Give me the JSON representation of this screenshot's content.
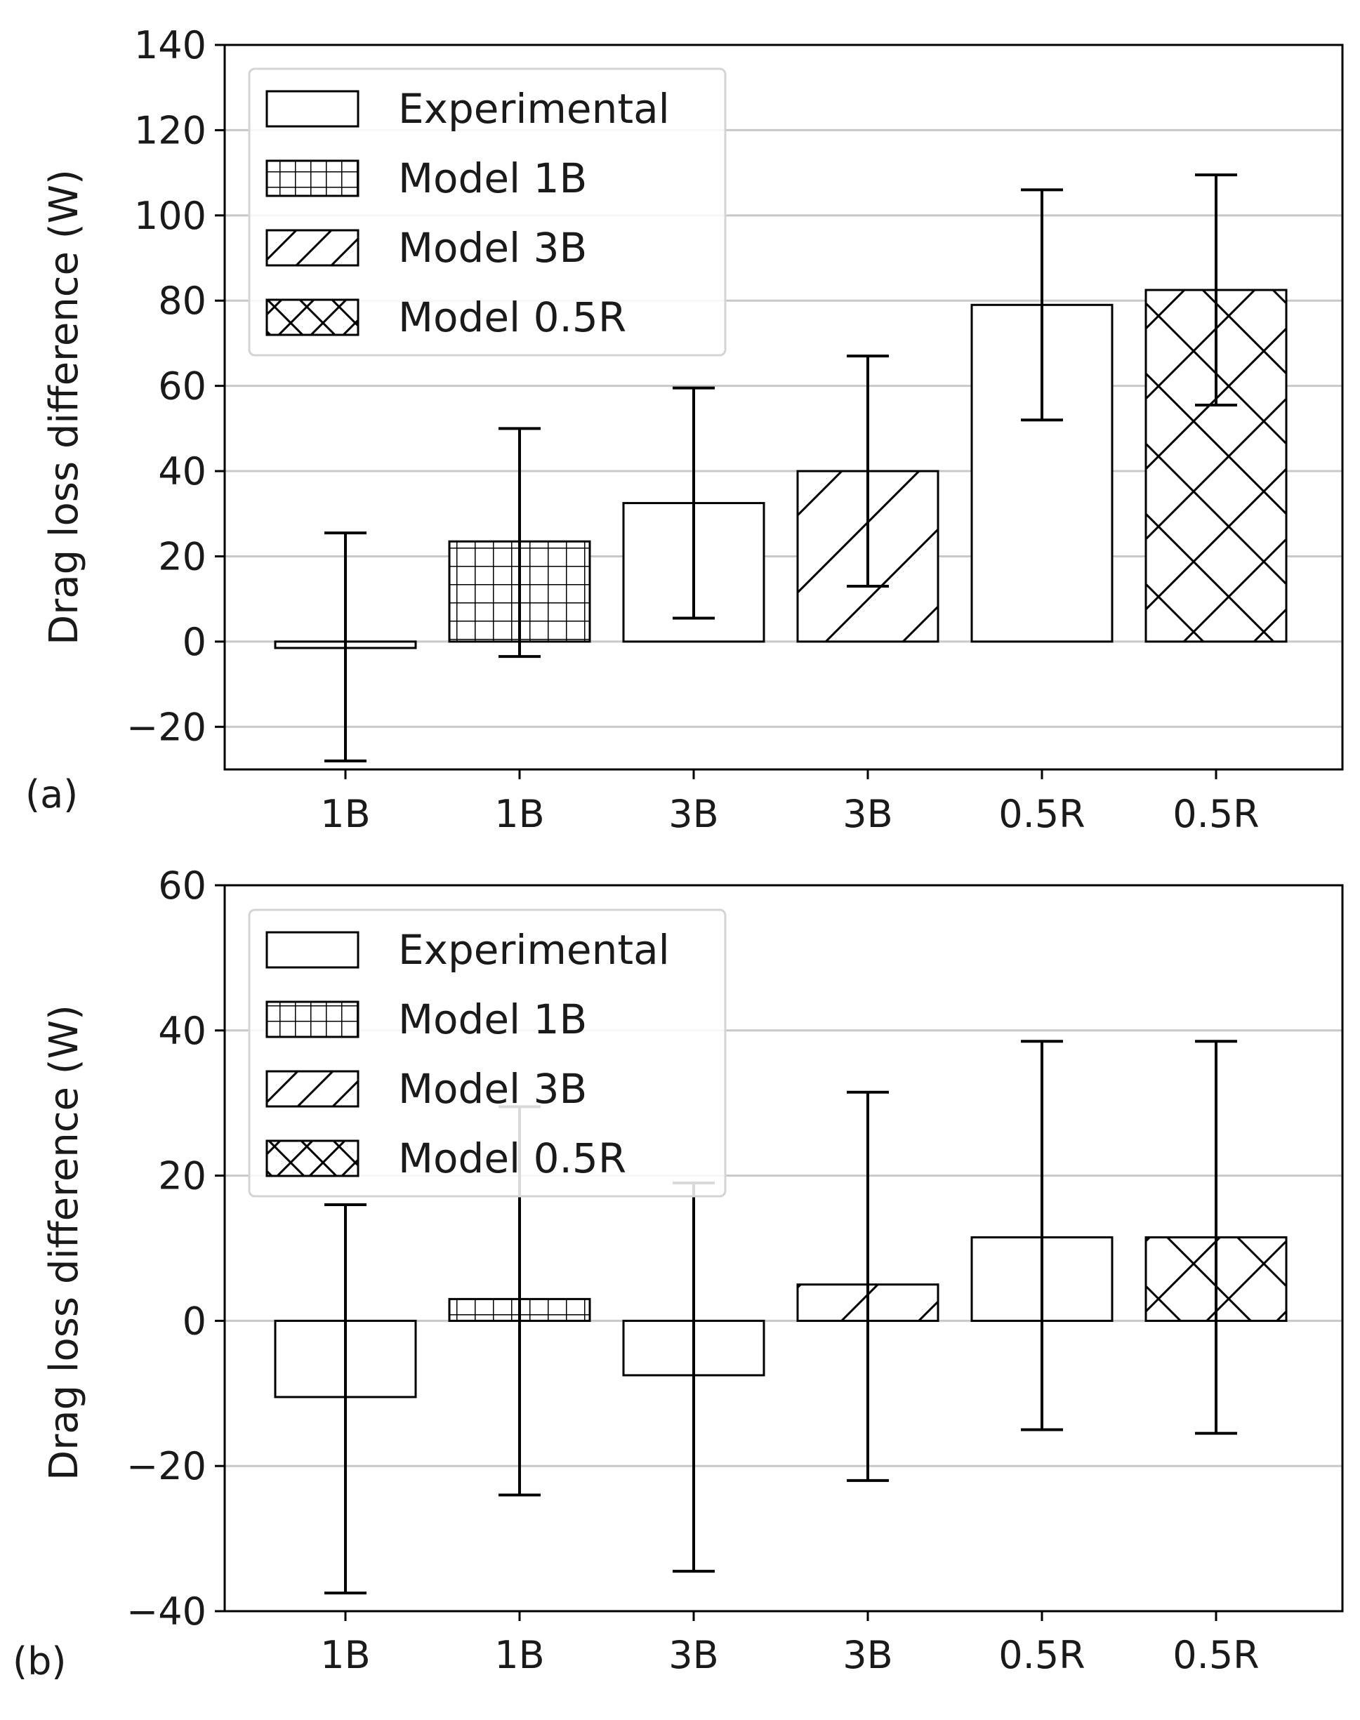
{
  "chart_data": [
    {
      "panel": "a",
      "type": "bar",
      "panel_label": "(a)",
      "ylabel": "Drag loss difference (W)",
      "xlabel": "",
      "ylim": [
        -30,
        140
      ],
      "yticks": [
        -20,
        0,
        20,
        40,
        60,
        80,
        100,
        120,
        140
      ],
      "ytick_labels": [
        "−20",
        "0",
        "20",
        "40",
        "60",
        "80",
        "100",
        "120",
        "140"
      ],
      "grid": "horizontal",
      "legend_position": "top-left",
      "categories": [
        "1B",
        "1B",
        "3B",
        "3B",
        "0.5R",
        "0.5R"
      ],
      "bars": [
        {
          "category": "1B",
          "series": "Experimental",
          "value": -1.5,
          "err_low": -28,
          "err_high": 25.5
        },
        {
          "category": "1B",
          "series": "Model 1B",
          "value": 23.5,
          "err_low": -3.5,
          "err_high": 50
        },
        {
          "category": "3B",
          "series": "Experimental",
          "value": 32.5,
          "err_low": 5.5,
          "err_high": 59.5
        },
        {
          "category": "3B",
          "series": "Model 3B",
          "value": 40,
          "err_low": 13,
          "err_high": 67
        },
        {
          "category": "0.5R",
          "series": "Experimental",
          "value": 79,
          "err_low": 52,
          "err_high": 106
        },
        {
          "category": "0.5R",
          "series": "Model 0.5R",
          "value": 82.5,
          "err_low": 55.5,
          "err_high": 109.5
        }
      ],
      "legend": [
        "Experimental",
        "Model 1B",
        "Model 3B",
        "Model 0.5R"
      ]
    },
    {
      "panel": "b",
      "type": "bar",
      "panel_label": "(b)",
      "ylabel": "Drag loss difference (W)",
      "xlabel": "",
      "ylim": [
        -40,
        60
      ],
      "yticks": [
        -40,
        -20,
        0,
        20,
        40,
        60
      ],
      "ytick_labels": [
        "−40",
        "−20",
        "0",
        "20",
        "40",
        "60"
      ],
      "grid": "horizontal",
      "legend_position": "top-left",
      "categories": [
        "1B",
        "1B",
        "3B",
        "3B",
        "0.5R",
        "0.5R"
      ],
      "bars": [
        {
          "category": "1B",
          "series": "Experimental",
          "value": -10.5,
          "err_low": -37.5,
          "err_high": 16
        },
        {
          "category": "1B",
          "series": "Model 1B",
          "value": 3,
          "err_low": -24,
          "err_high": 29.5
        },
        {
          "category": "3B",
          "series": "Experimental",
          "value": -7.5,
          "err_low": -34.5,
          "err_high": 19
        },
        {
          "category": "3B",
          "series": "Model 3B",
          "value": 5,
          "err_low": -22,
          "err_high": 31.5
        },
        {
          "category": "0.5R",
          "series": "Experimental",
          "value": 11.5,
          "err_low": -15,
          "err_high": 38.5
        },
        {
          "category": "0.5R",
          "series": "Model 0.5R",
          "value": 11.5,
          "err_low": -15.5,
          "err_high": 38.5
        }
      ],
      "legend": [
        "Experimental",
        "Model 1B",
        "Model 3B",
        "Model 0.5R"
      ]
    }
  ],
  "series_styles": {
    "Experimental": {
      "hatch": "none"
    },
    "Model 1B": {
      "hatch": "grid"
    },
    "Model 3B": {
      "hatch": "diagonal"
    },
    "Model 0.5R": {
      "hatch": "cross"
    }
  },
  "colors": {
    "bar_fill": "#ffffff",
    "edge": "#000000",
    "grid": "#c8c8c8",
    "legend_border": "#d4d4d4"
  }
}
